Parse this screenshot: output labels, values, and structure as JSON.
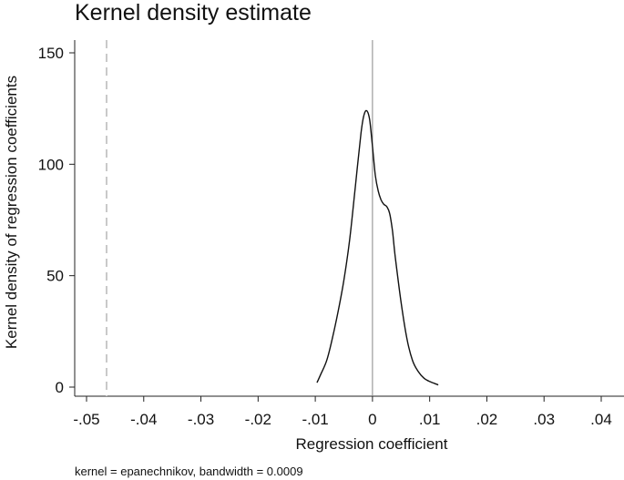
{
  "chart_data": {
    "type": "line",
    "title": "Kernel density estimate",
    "xlabel": "Regression coefficient",
    "ylabel": "Kernel density of regression coefficients",
    "note": "kernel = epanechnikov, bandwidth = 0.0009",
    "xlim": [
      -0.05,
      0.04
    ],
    "ylim": [
      0,
      150
    ],
    "x_ticks": [
      {
        "value": -0.05,
        "label": "-.05"
      },
      {
        "value": -0.04,
        "label": "-.04"
      },
      {
        "value": -0.03,
        "label": "-.03"
      },
      {
        "value": -0.02,
        "label": "-.02"
      },
      {
        "value": -0.01,
        "label": "-.01"
      },
      {
        "value": 0.0,
        "label": "0"
      },
      {
        "value": 0.01,
        "label": ".01"
      },
      {
        "value": 0.02,
        "label": ".02"
      },
      {
        "value": 0.03,
        "label": ".03"
      },
      {
        "value": 0.04,
        "label": ".04"
      }
    ],
    "y_ticks": [
      {
        "value": 0,
        "label": "0"
      },
      {
        "value": 50,
        "label": "50"
      },
      {
        "value": 100,
        "label": "100"
      },
      {
        "value": 150,
        "label": "150"
      }
    ],
    "grid": false,
    "reference_lines": [
      {
        "axis": "x",
        "value": 0.0,
        "style": "solid",
        "color": "#888888"
      },
      {
        "axis": "x",
        "value": -0.0465,
        "style": "dashed",
        "color": "#c8c8c8"
      }
    ],
    "series": [
      {
        "color": "#111111",
        "x": [
          -0.0097,
          -0.009,
          -0.008,
          -0.007,
          -0.006,
          -0.005,
          -0.004,
          -0.003,
          -0.002,
          -0.0015,
          -0.001,
          -0.0005,
          0.0,
          0.0005,
          0.001,
          0.0015,
          0.002,
          0.0025,
          0.003,
          0.0035,
          0.004,
          0.005,
          0.006,
          0.007,
          0.008,
          0.009,
          0.01,
          0.0115
        ],
        "y": [
          2,
          6,
          12,
          22,
          34,
          48,
          66,
          90,
          114,
          122,
          124,
          120,
          108,
          95,
          88,
          84,
          82,
          81,
          78,
          70,
          58,
          38,
          22,
          12,
          7,
          4,
          2.5,
          1
        ]
      }
    ]
  }
}
